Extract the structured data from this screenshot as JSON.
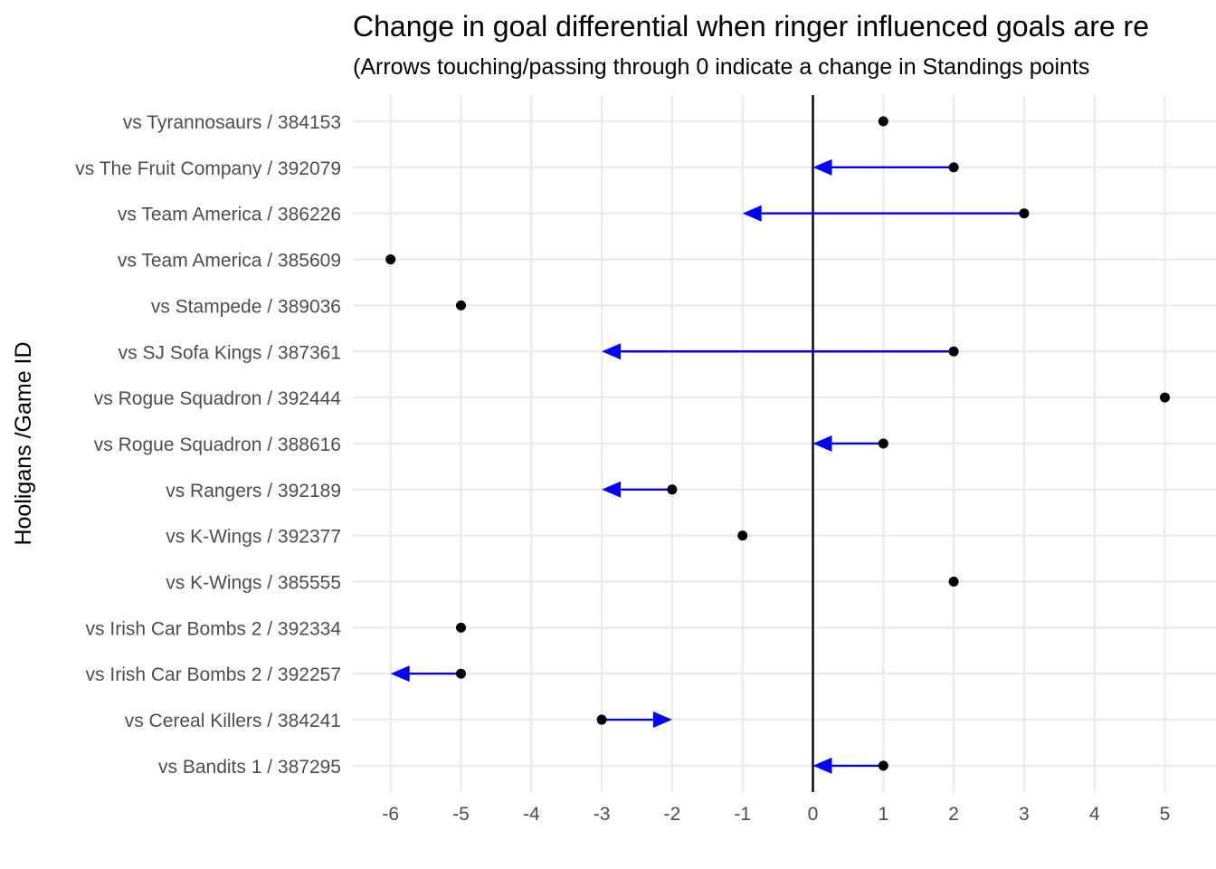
{
  "chart_data": {
    "type": "scatter",
    "title": "Change in goal differential when ringer influenced goals are re",
    "subtitle": "(Arrows touching/passing through 0 indicate a change in Standings points",
    "xlabel": "",
    "ylabel": "Hooligans /Game ID",
    "xlim": [
      -6.6,
      5.5
    ],
    "x_ticks": [
      -6,
      -5,
      -4,
      -3,
      -2,
      -1,
      0,
      1,
      2,
      3,
      4,
      5
    ],
    "x_tick_labels": [
      "-6",
      "-5",
      "-4",
      "-3",
      "-2",
      "-1",
      "0",
      "1",
      "2",
      "3",
      "4",
      "5"
    ],
    "grid": true,
    "reference_line_x": 0,
    "colors": {
      "point": "#000000",
      "arrow": "#0000ff",
      "grid": "#ebebeb",
      "zero_line": "#000000"
    },
    "categories": [
      "vs Tyrannosaurs / 384153",
      "vs The Fruit Company / 392079",
      "vs Team America / 386226",
      "vs Team America / 385609",
      "vs Stampede / 389036",
      "vs SJ Sofa Kings / 387361",
      "vs Rogue Squadron / 392444",
      "vs Rogue Squadron / 388616",
      "vs Rangers / 392189",
      "vs K-Wings / 392377",
      "vs K-Wings / 385555",
      "vs Irish Car Bombs 2 / 392334",
      "vs Irish Car Bombs 2 / 392257",
      "vs Cereal Killers / 384241",
      "vs Bandits 1 / 387295"
    ],
    "points": [
      {
        "game": "vs Tyrannosaurs / 384153",
        "original": 1,
        "adjusted": 1
      },
      {
        "game": "vs The Fruit Company / 392079",
        "original": 2,
        "adjusted": 0
      },
      {
        "game": "vs Team America / 386226",
        "original": 3,
        "adjusted": -1
      },
      {
        "game": "vs Team America / 385609",
        "original": -6,
        "adjusted": -6
      },
      {
        "game": "vs Stampede / 389036",
        "original": -5,
        "adjusted": -5
      },
      {
        "game": "vs SJ Sofa Kings / 387361",
        "original": 2,
        "adjusted": -3
      },
      {
        "game": "vs Rogue Squadron / 392444",
        "original": 5,
        "adjusted": 5
      },
      {
        "game": "vs Rogue Squadron / 388616",
        "original": 1,
        "adjusted": 0
      },
      {
        "game": "vs Rangers / 392189",
        "original": -2,
        "adjusted": -3
      },
      {
        "game": "vs K-Wings / 392377",
        "original": -1,
        "adjusted": -1
      },
      {
        "game": "vs K-Wings / 385555",
        "original": 2,
        "adjusted": 2
      },
      {
        "game": "vs Irish Car Bombs 2 / 392334",
        "original": -5,
        "adjusted": -5
      },
      {
        "game": "vs Irish Car Bombs 2 / 392257",
        "original": -5,
        "adjusted": -6
      },
      {
        "game": "vs Cereal Killers / 384241",
        "original": -3,
        "adjusted": -2
      },
      {
        "game": "vs Bandits 1 / 387295",
        "original": 1,
        "adjusted": 0
      }
    ]
  }
}
